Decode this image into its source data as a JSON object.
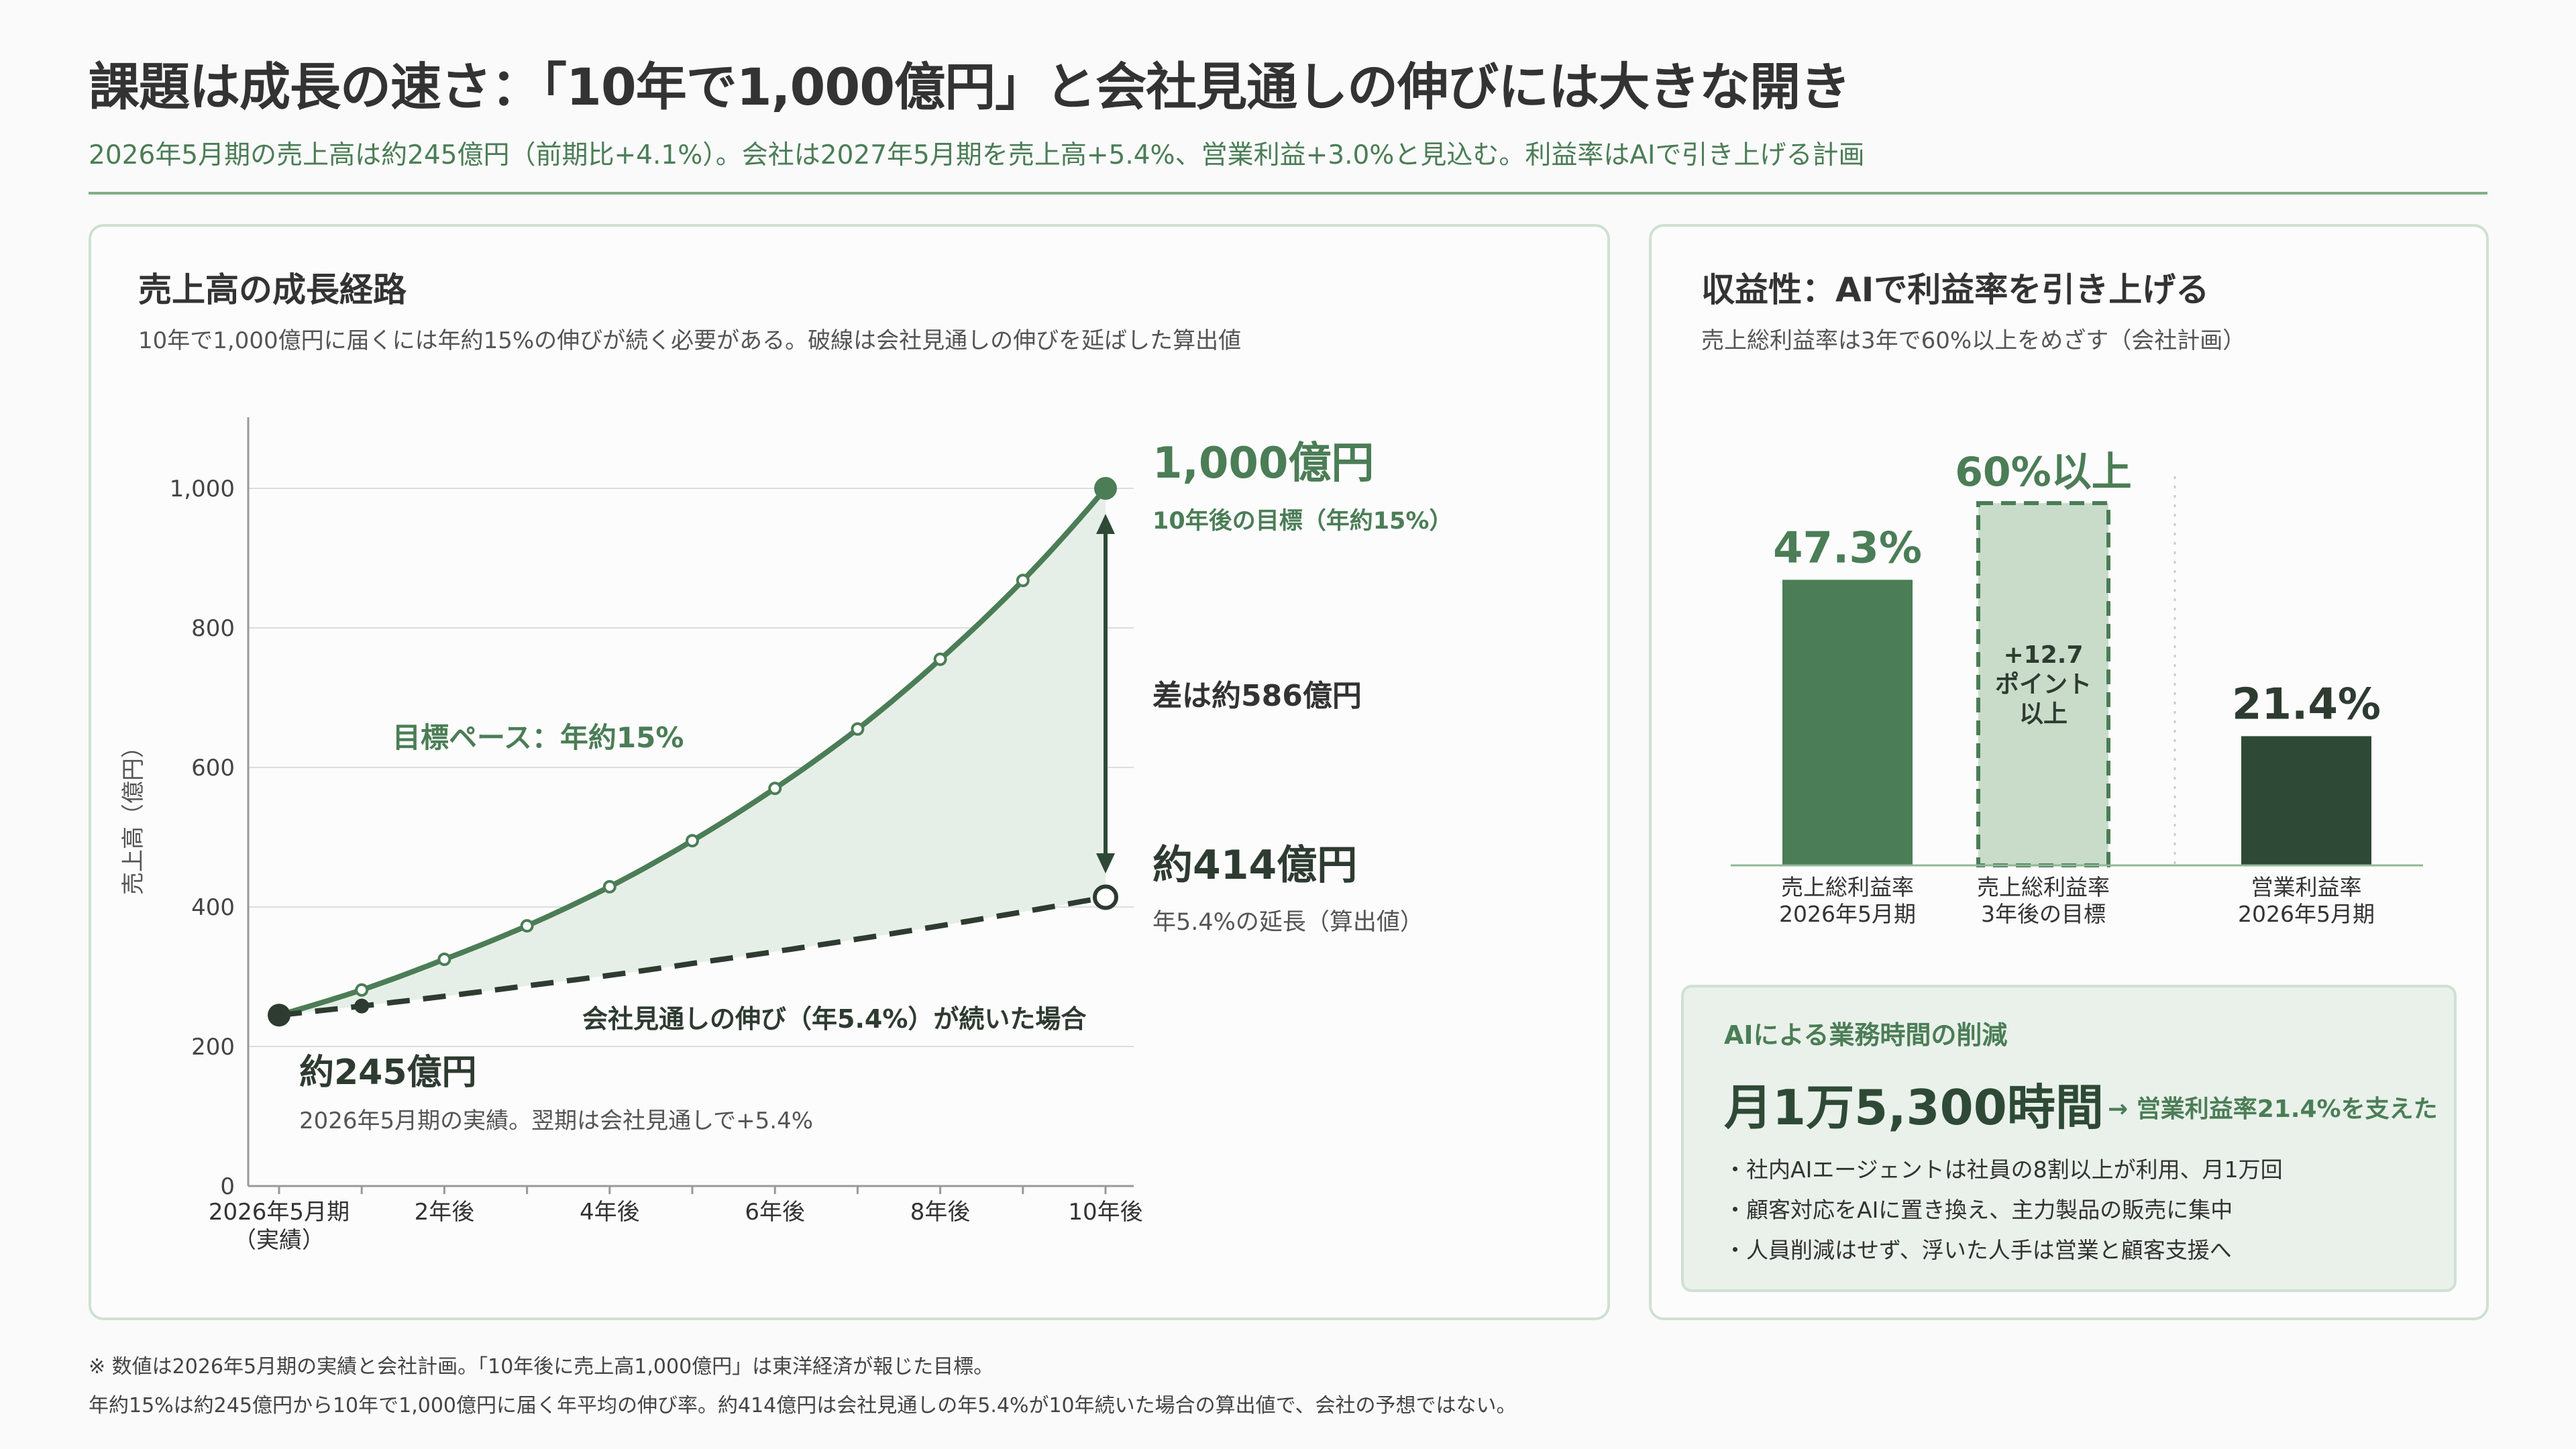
{
  "header": {
    "title": "課題は成長の速さ：「10年で1,000億円」と会社見通しの伸びには大きな開き",
    "subtitle": "2026年5月期の売上高は約245億円（前期比+4.1%）。会社は2027年5月期を売上高+5.4%、営業利益+3.0%と見込む。利益率はAIで引き上げる計画"
  },
  "left_panel": {
    "title": "売上高の成長経路",
    "subtitle": "10年で1,000億円に届くには年約15%の伸びが続く必要がある。破線は会社見通しの伸びを延ばした算出値"
  },
  "right_panel": {
    "title": "収益性：AIで利益率を引き上げる",
    "subtitle": "売上総利益率は3年で60%以上をめざす（会社計画）"
  },
  "ai_box": {
    "title": "AIによる業務時間の削減",
    "big_value": "月1万5,300時間",
    "note": "→ 営業利益率21.4%を支えた",
    "items": [
      "・社内AIエージェントは社員の8割以上が利用、月1万回",
      "・顧客対応をAIに置き換え、主力製品の販売に集中",
      "・人員削減はせず、浮いた人手は営業と顧客支援へ"
    ]
  },
  "footnotes": [
    "※ 数値は2026年5月期の実績と会社計画。「10年後に売上高1,000億円」は東洋経済が報じた目標。",
    "年約15%は約245億円から10年で1,000億円に届く年平均の伸び率。約414億円は会社見通しの年5.4%が10年続いた場合の算出値で、会社の予想ではない。"
  ],
  "colors": {
    "accent": "#4b7d56",
    "dark": "#2e4a36",
    "light_fill": "#c9dcca",
    "area_fill": "#e6efe7",
    "grid": "#dddddd"
  },
  "chart_data": [
    {
      "type": "line",
      "ylabel": "売上高（億円）",
      "xlabel": "",
      "ylim": [
        0,
        1100
      ],
      "yticks": [
        0,
        200,
        400,
        600,
        800,
        1000
      ],
      "ytick_labels": [
        "0",
        "200",
        "400",
        "600",
        "800",
        "1,000"
      ],
      "x": [
        0,
        1,
        2,
        3,
        4,
        5,
        6,
        7,
        8,
        9,
        10
      ],
      "xtick_labels": [
        {
          "x": 0,
          "label": "2026年5月期",
          "label2": "（実績）"
        },
        {
          "x": 2,
          "label": "2年後"
        },
        {
          "x": 4,
          "label": "4年後"
        },
        {
          "x": 6,
          "label": "6年後"
        },
        {
          "x": 8,
          "label": "8年後"
        },
        {
          "x": 10,
          "label": "10年後"
        }
      ],
      "series": [
        {
          "name": "目標ペース：年約15%",
          "style": "solid",
          "values": [
            245,
            281,
            325,
            373,
            429,
            495,
            570,
            655,
            755,
            868,
            1000
          ]
        },
        {
          "name": "会社見通しの伸び（年5.4%）が続いた場合",
          "style": "dashed",
          "values": [
            245,
            258,
            272,
            287,
            302,
            319,
            336,
            354,
            373,
            393,
            414
          ]
        }
      ],
      "annotations": {
        "start_value": "約245億円",
        "start_note": "2026年5月期の実績。翌期は会社見通しで+5.4%",
        "target_value": "1,000億円",
        "target_note": "10年後の目標（年約15%）",
        "gap": "差は約586億円",
        "projection_value": "約414億円",
        "projection_note": "年5.4%の延長（算出値）"
      }
    },
    {
      "type": "bar",
      "categories": [
        [
          "売上総利益率",
          "2026年5月期"
        ],
        [
          "売上総利益率",
          "3年後の目標"
        ],
        [
          "営業利益率",
          "2026年5月期"
        ]
      ],
      "values": [
        47.3,
        60,
        21.4
      ],
      "value_labels": [
        "47.3%",
        "60%以上",
        "21.4%"
      ],
      "ylim": [
        0,
        65
      ],
      "target_note": [
        "+12.7",
        "ポイント",
        "以上"
      ]
    }
  ]
}
